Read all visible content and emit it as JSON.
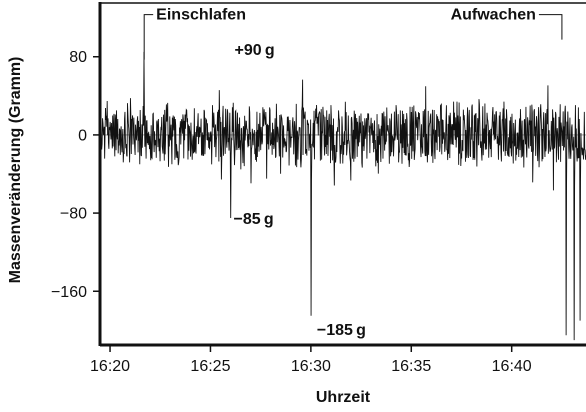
{
  "chart_data": {
    "type": "line",
    "xlabel": "Uhrzeit",
    "ylabel": "Massenveränderung (Gramm)",
    "x_range": [
      "16:19.5",
      "16:43.7"
    ],
    "ylim": [
      -215,
      135
    ],
    "x_ticks": [
      "16:20",
      "16:25",
      "16:30",
      "16:35",
      "16:40"
    ],
    "y_ticks": [
      "80",
      "0",
      "−80",
      "−160"
    ],
    "zero_line": true,
    "series": [
      {
        "noise_amplitude": 28,
        "events": [
          {
            "x": "16:21.7",
            "y": 85
          },
          {
            "x": "16:26.0",
            "y": 90
          },
          {
            "x": "16:26.0",
            "y": -85
          },
          {
            "x": "16:30.0",
            "y": -185
          },
          {
            "x": "16:42.7",
            "y": 120
          },
          {
            "x": "16:42.7",
            "y": -205
          },
          {
            "x": "16:43.1",
            "y": -210
          },
          {
            "x": "16:43.4",
            "y": -190
          }
        ]
      }
    ],
    "annotations": [
      {
        "id": "einschlafen",
        "text": "Einschlafen",
        "x": "16:21.7",
        "y": 118
      },
      {
        "id": "plus90",
        "text": "+90 g",
        "x": "16:26.0",
        "y": 82
      },
      {
        "id": "minus85",
        "text": "−85 g",
        "x": "16:26.0",
        "y": -78
      },
      {
        "id": "minus185",
        "text": "−185 g",
        "x": "16:30.0",
        "y": -180
      },
      {
        "id": "aufwachen",
        "text": "Aufwachen",
        "x": "16:42.7",
        "y": 118
      }
    ]
  }
}
